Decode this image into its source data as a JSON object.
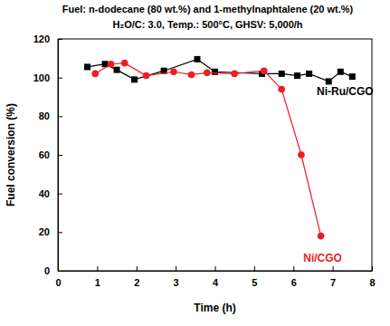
{
  "chart_data": {
    "type": "line",
    "title": "Fuel: n-dodecane (80 wt.%) and 1-methylnaphtalene (20 wt.%)",
    "subtitle": "H₂O/C: 3.0, Temp.: 500°C, GHSV: 5,000/h",
    "x_label": "Time (h)",
    "y_label": "Fuel conversion (%)",
    "xlim": [
      0,
      8
    ],
    "xticks": [
      0,
      1,
      2,
      3,
      4,
      5,
      6,
      7,
      8
    ],
    "ylim": [
      0,
      120
    ],
    "yticks": [
      0,
      20,
      40,
      60,
      80,
      100,
      120
    ],
    "grid": false,
    "series": [
      {
        "name": "Ni-Ru/CGO",
        "color": "#000000",
        "marker": "square",
        "line_style": "solid",
        "x": [
          0.75,
          1.2,
          1.5,
          1.95,
          2.7,
          3.55,
          4.0,
          5.2,
          5.7,
          6.1,
          6.4,
          6.9,
          7.2,
          7.5
        ],
        "values": [
          105.5,
          107,
          104,
          99,
          103.5,
          109.5,
          103,
          102,
          102,
          101,
          102,
          98,
          103,
          100.5
        ]
      },
      {
        "name": "Ni/CGO",
        "color": "#ee1c25",
        "marker": "circle",
        "line_style": "solid",
        "x": [
          0.95,
          1.35,
          1.7,
          2.25,
          2.95,
          3.4,
          3.8,
          4.5,
          5.25,
          5.7,
          6.2,
          6.7
        ],
        "values": [
          102,
          107,
          107.5,
          101,
          103,
          101.5,
          102.5,
          102,
          103.5,
          94,
          60,
          18
        ]
      }
    ]
  }
}
